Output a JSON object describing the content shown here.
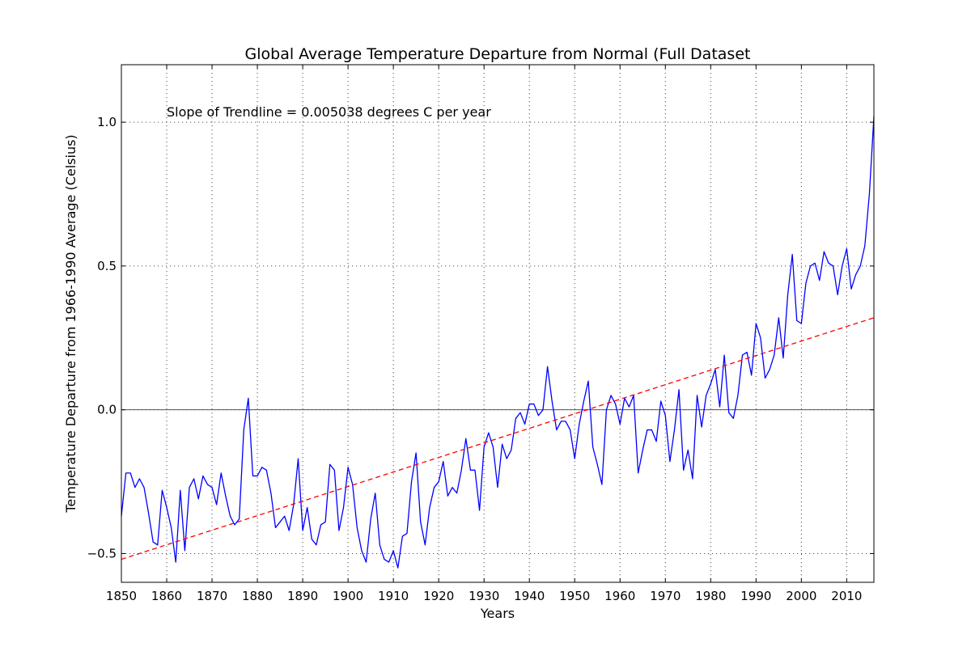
{
  "chart_data": {
    "type": "line",
    "title": "Global Average Temperature Departure from Normal (Full Dataset",
    "xlabel": "Years",
    "ylabel": "Temperature Departure from 1966-1990 Average (Celsius)",
    "xlim": [
      1850,
      2016
    ],
    "ylim": [
      -0.6,
      1.2
    ],
    "x_ticks": [
      1850,
      1860,
      1870,
      1880,
      1890,
      1900,
      1910,
      1920,
      1930,
      1940,
      1950,
      1960,
      1970,
      1980,
      1990,
      2000,
      2010
    ],
    "y_ticks": [
      -0.5,
      0.0,
      0.5,
      1.0
    ],
    "y_tick_labels": [
      "−0.5",
      "0.0",
      "0.5",
      "1.0"
    ],
    "grid": true,
    "zero_line": true,
    "annotation": "Slope of Trendline = 0.005038 degrees C per year",
    "series": [
      {
        "color": "#0000ff",
        "style": "solid",
        "x_start": 1850,
        "x_step": 1,
        "values": [
          -0.37,
          -0.22,
          -0.22,
          -0.27,
          -0.24,
          -0.27,
          -0.36,
          -0.46,
          -0.47,
          -0.28,
          -0.34,
          -0.41,
          -0.53,
          -0.28,
          -0.49,
          -0.27,
          -0.24,
          -0.31,
          -0.23,
          -0.26,
          -0.27,
          -0.33,
          -0.22,
          -0.3,
          -0.37,
          -0.4,
          -0.38,
          -0.07,
          0.04,
          -0.23,
          -0.23,
          -0.2,
          -0.21,
          -0.29,
          -0.41,
          -0.39,
          -0.37,
          -0.42,
          -0.33,
          -0.17,
          -0.42,
          -0.34,
          -0.45,
          -0.47,
          -0.4,
          -0.39,
          -0.19,
          -0.21,
          -0.42,
          -0.34,
          -0.2,
          -0.26,
          -0.41,
          -0.49,
          -0.53,
          -0.38,
          -0.29,
          -0.47,
          -0.52,
          -0.53,
          -0.49,
          -0.55,
          -0.44,
          -0.43,
          -0.25,
          -0.15,
          -0.39,
          -0.47,
          -0.34,
          -0.27,
          -0.25,
          -0.18,
          -0.3,
          -0.27,
          -0.29,
          -0.21,
          -0.1,
          -0.21,
          -0.21,
          -0.35,
          -0.13,
          -0.08,
          -0.13,
          -0.27,
          -0.12,
          -0.17,
          -0.14,
          -0.03,
          -0.01,
          -0.05,
          0.02,
          0.02,
          -0.02,
          0.0,
          0.15,
          0.03,
          -0.07,
          -0.04,
          -0.04,
          -0.07,
          -0.17,
          -0.05,
          0.03,
          0.1,
          -0.13,
          -0.19,
          -0.26,
          0.0,
          0.05,
          0.02,
          -0.05,
          0.04,
          0.01,
          0.05,
          -0.22,
          -0.14,
          -0.07,
          -0.07,
          -0.11,
          0.03,
          -0.02,
          -0.18,
          -0.07,
          0.07,
          -0.21,
          -0.14,
          -0.24,
          0.05,
          -0.06,
          0.05,
          0.09,
          0.14,
          0.01,
          0.19,
          -0.01,
          -0.03,
          0.05,
          0.19,
          0.2,
          0.12,
          0.3,
          0.25,
          0.11,
          0.14,
          0.19,
          0.32,
          0.18,
          0.4,
          0.54,
          0.31,
          0.3,
          0.44,
          0.5,
          0.51,
          0.45,
          0.55,
          0.51,
          0.5,
          0.4,
          0.5,
          0.56,
          0.42,
          0.47,
          0.5,
          0.57,
          0.75,
          1.02
        ]
      },
      {
        "color": "#ff0000",
        "style": "dashed",
        "x": [
          1850,
          2016
        ],
        "values": [
          -0.52,
          0.32
        ]
      }
    ]
  }
}
